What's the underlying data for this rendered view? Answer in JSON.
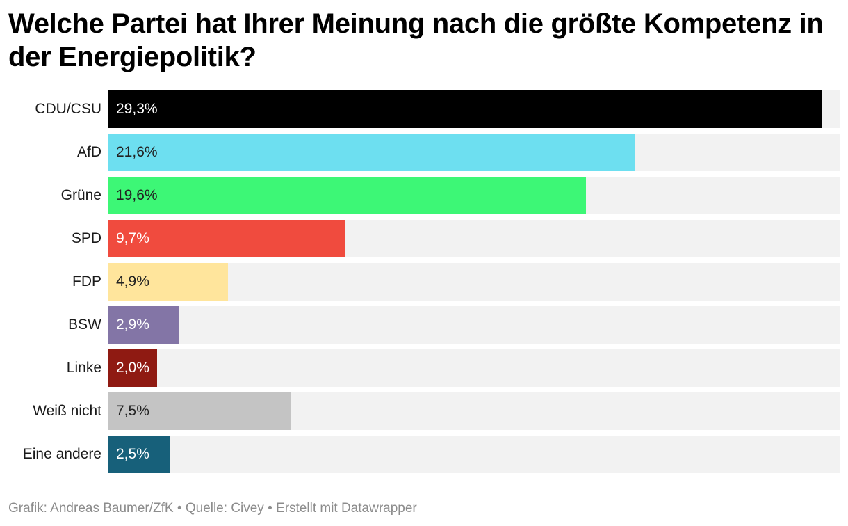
{
  "chart_data": {
    "type": "bar",
    "orientation": "horizontal",
    "title": "Welche Partei hat Ihrer Meinung nach die größte Kompetenz in der Energiepolitik?",
    "categories": [
      "CDU/CSU",
      "AfD",
      "Grüne",
      "SPD",
      "FDP",
      "BSW",
      "Linke",
      "Weiß nicht",
      "Eine andere"
    ],
    "values": [
      29.3,
      21.6,
      19.6,
      9.7,
      4.9,
      2.9,
      2.0,
      7.5,
      2.5
    ],
    "value_labels": [
      "29,3%",
      "21,6%",
      "19,6%",
      "9,7%",
      "4,9%",
      "2,9%",
      "2,0%",
      "7,5%",
      "2,5%"
    ],
    "colors": [
      "#000000",
      "#6ddff0",
      "#3df776",
      "#f04b3e",
      "#ffe59c",
      "#8375a6",
      "#8f1a12",
      "#c4c4c4",
      "#17607a"
    ],
    "label_colors": [
      "#ffffff",
      "#222222",
      "#222222",
      "#ffffff",
      "#222222",
      "#ffffff",
      "#ffffff",
      "#222222",
      "#ffffff"
    ],
    "track_color": "#f2f2f2",
    "xlim": [
      0,
      30
    ],
    "xlabel": "",
    "ylabel": ""
  },
  "footer": {
    "credit": "Grafik: Andreas Baumer/ZfK",
    "sep1": " • ",
    "source": "Quelle: Civey",
    "sep2": " • ",
    "tool": "Erstellt mit Datawrapper"
  }
}
